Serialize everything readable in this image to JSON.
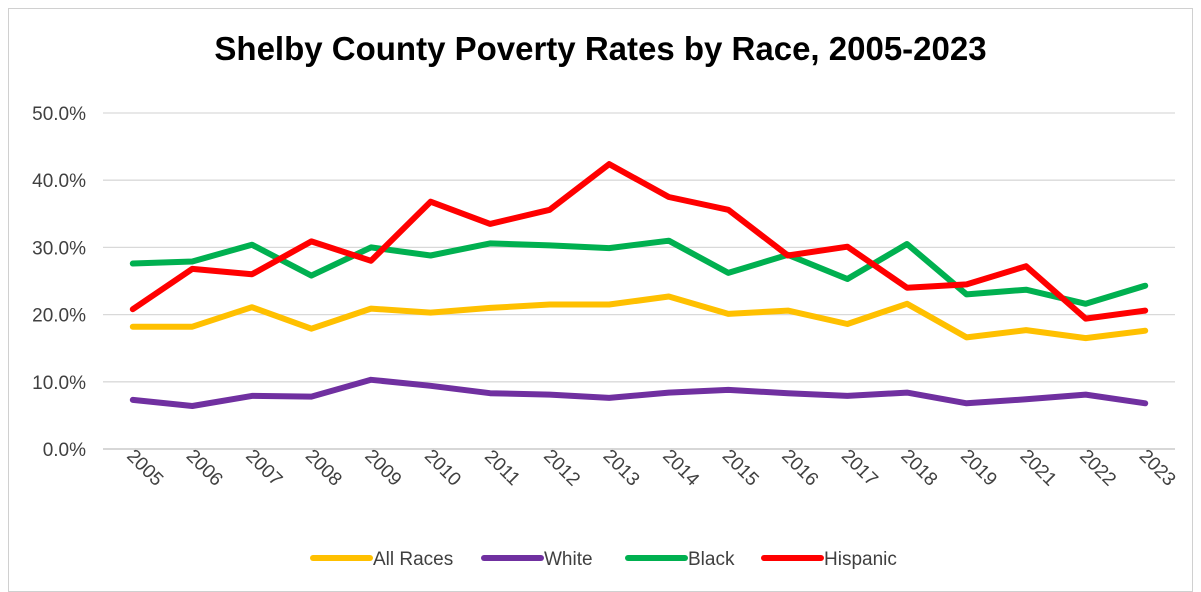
{
  "chart_data": {
    "type": "line",
    "title": "Shelby County Poverty Rates by Race, 2005-2023",
    "xlabel": "",
    "ylabel": "",
    "ylim": [
      0,
      50
    ],
    "y_ticks": [
      "0.0%",
      "10.0%",
      "20.0%",
      "30.0%",
      "40.0%",
      "50.0%"
    ],
    "grid": "horizontal",
    "legend_position": "bottom",
    "categories": [
      "2005",
      "2006",
      "2007",
      "2008",
      "2009",
      "2010",
      "2011",
      "2012",
      "2013",
      "2014",
      "2015",
      "2016",
      "2017",
      "2018",
      "2019",
      "2021",
      "2022",
      "2023"
    ],
    "series": [
      {
        "name": "All Races",
        "color": "#FFC000",
        "values": [
          18.2,
          18.2,
          21.1,
          17.9,
          20.9,
          20.3,
          21.0,
          21.5,
          21.5,
          22.7,
          20.1,
          20.6,
          18.6,
          21.6,
          16.6,
          17.7,
          16.5,
          17.6
        ]
      },
      {
        "name": "White",
        "color": "#7030A0",
        "values": [
          7.3,
          6.4,
          7.9,
          7.8,
          10.3,
          9.4,
          8.3,
          8.1,
          7.6,
          8.4,
          8.8,
          8.3,
          7.9,
          8.4,
          6.8,
          7.4,
          8.1,
          6.8
        ]
      },
      {
        "name": "Black",
        "color": "#00B050",
        "values": [
          27.6,
          27.9,
          30.4,
          25.8,
          30.0,
          28.8,
          30.6,
          30.3,
          29.9,
          31.0,
          26.2,
          28.9,
          25.3,
          30.5,
          23.0,
          23.7,
          21.6,
          24.3
        ]
      },
      {
        "name": "Hispanic",
        "color": "#FF0000",
        "values": [
          20.8,
          26.8,
          26.0,
          30.9,
          28.0,
          36.8,
          33.5,
          35.6,
          42.4,
          37.5,
          35.6,
          28.8,
          30.1,
          24.0,
          24.5,
          27.2,
          19.4,
          20.6
        ]
      }
    ]
  }
}
